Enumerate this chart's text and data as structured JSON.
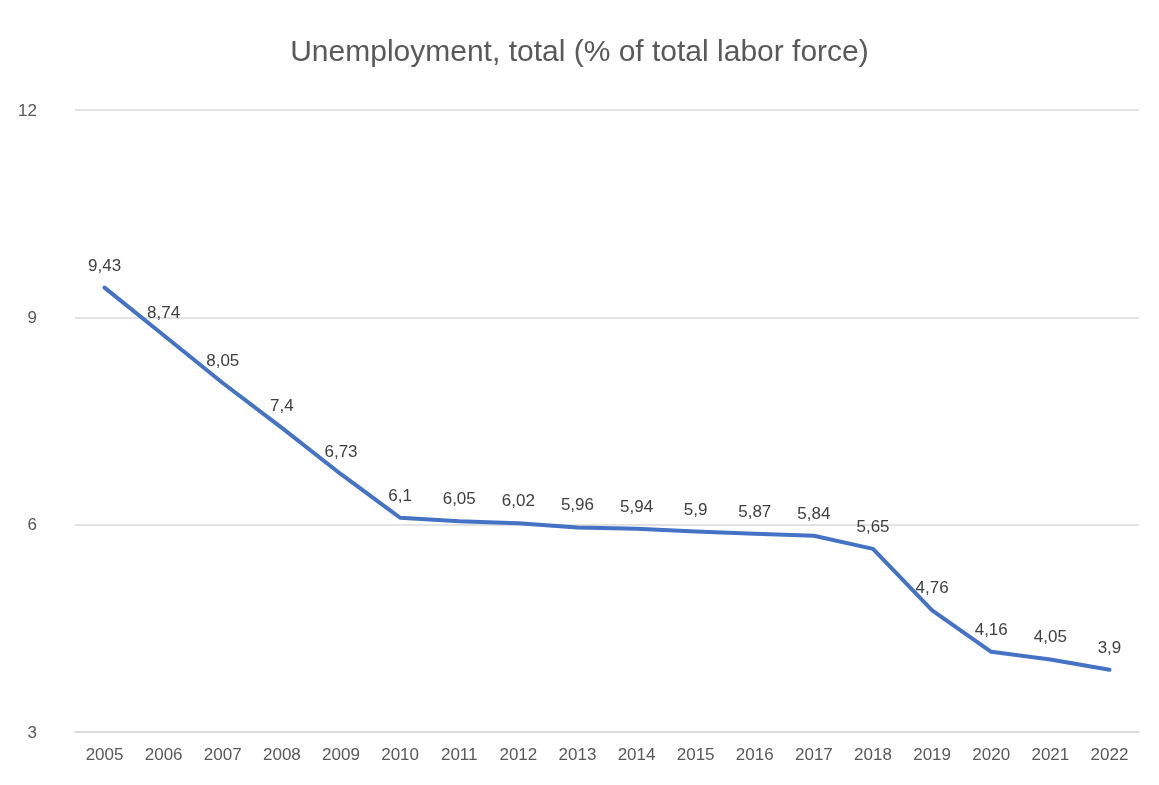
{
  "chart_data": {
    "type": "line",
    "title": "Unemployment, total (% of total labor force)",
    "categories": [
      "2005",
      "2006",
      "2007",
      "2008",
      "2009",
      "2010",
      "2011",
      "2012",
      "2013",
      "2014",
      "2015",
      "2016",
      "2017",
      "2018",
      "2019",
      "2020",
      "2021",
      "2022"
    ],
    "series": [
      {
        "color": "#4472c4",
        "values": [
          9.43,
          8.74,
          8.05,
          7.4,
          6.73,
          6.1,
          6.05,
          6.02,
          5.96,
          5.94,
          5.9,
          5.87,
          5.84,
          5.65,
          4.76,
          4.16,
          4.05,
          3.9
        ],
        "value_labels": [
          "9,43",
          "8,74",
          "8,05",
          "7,4",
          "6,73",
          "6,1",
          "6,05",
          "6,02",
          "5,96",
          "5,94",
          "5,9",
          "5,87",
          "5,84",
          "5,65",
          "4,76",
          "4,16",
          "4,05",
          "3,9"
        ]
      }
    ],
    "ylim": [
      3,
      12
    ],
    "yticks": [
      3,
      6,
      9,
      12
    ],
    "grid": "y",
    "marker": "none",
    "line_style": "solid"
  }
}
